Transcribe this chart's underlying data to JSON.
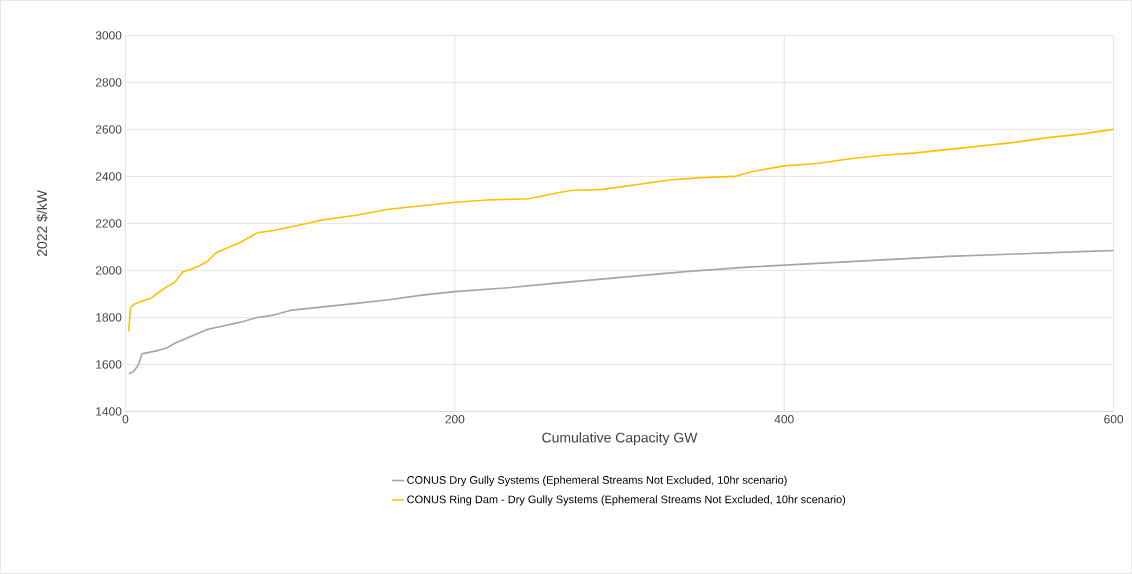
{
  "chart_data": {
    "type": "line",
    "xlabel": "Cumulative Capacity GW",
    "ylabel": "2022 $/kW",
    "xlim": [
      0,
      600
    ],
    "ylim": [
      1400,
      3000
    ],
    "xticks": [
      0,
      200,
      400,
      600
    ],
    "yticks": [
      1400,
      1600,
      1800,
      2000,
      2200,
      2400,
      2600,
      2800,
      3000
    ],
    "grid": true,
    "legend": "bottom",
    "marker": "none",
    "line_style": "solid",
    "series": [
      {
        "name": "CONUS Dry Gully Systems (Ephemeral Streams Not Excluded, 10hr scenario)",
        "color": "#a5a5a5",
        "x": [
          2,
          5,
          8,
          10,
          20,
          25,
          30,
          35,
          40,
          50,
          60,
          70,
          80,
          90,
          100,
          120,
          140,
          160,
          180,
          200,
          230,
          260,
          300,
          340,
          380,
          420,
          460,
          500,
          540,
          580,
          600
        ],
        "values": [
          1560,
          1570,
          1600,
          1645,
          1660,
          1670,
          1690,
          1705,
          1720,
          1750,
          1765,
          1780,
          1800,
          1810,
          1830,
          1845,
          1860,
          1875,
          1895,
          1910,
          1925,
          1945,
          1970,
          1995,
          2015,
          2030,
          2045,
          2060,
          2070,
          2080,
          2085
        ]
      },
      {
        "name": "CONUS Ring Dam - Dry Gully Systems (Ephemeral Streams Not Excluded, 10hr scenario)",
        "color": "#ffc000",
        "x": [
          2,
          3,
          5,
          10,
          15,
          20,
          25,
          30,
          35,
          40,
          45,
          50,
          55,
          60,
          65,
          70,
          75,
          80,
          90,
          100,
          110,
          120,
          140,
          160,
          180,
          200,
          220,
          245,
          255,
          270,
          290,
          310,
          330,
          350,
          370,
          380,
          400,
          420,
          440,
          460,
          480,
          500,
          520,
          540,
          560,
          580,
          600
        ],
        "values": [
          1740,
          1840,
          1855,
          1870,
          1880,
          1905,
          1930,
          1950,
          1995,
          2005,
          2020,
          2040,
          2075,
          2090,
          2105,
          2120,
          2140,
          2160,
          2170,
          2185,
          2200,
          2215,
          2235,
          2260,
          2275,
          2290,
          2300,
          2305,
          2320,
          2340,
          2345,
          2365,
          2385,
          2395,
          2400,
          2420,
          2445,
          2455,
          2475,
          2490,
          2500,
          2515,
          2530,
          2545,
          2565,
          2580,
          2600
        ]
      }
    ]
  }
}
